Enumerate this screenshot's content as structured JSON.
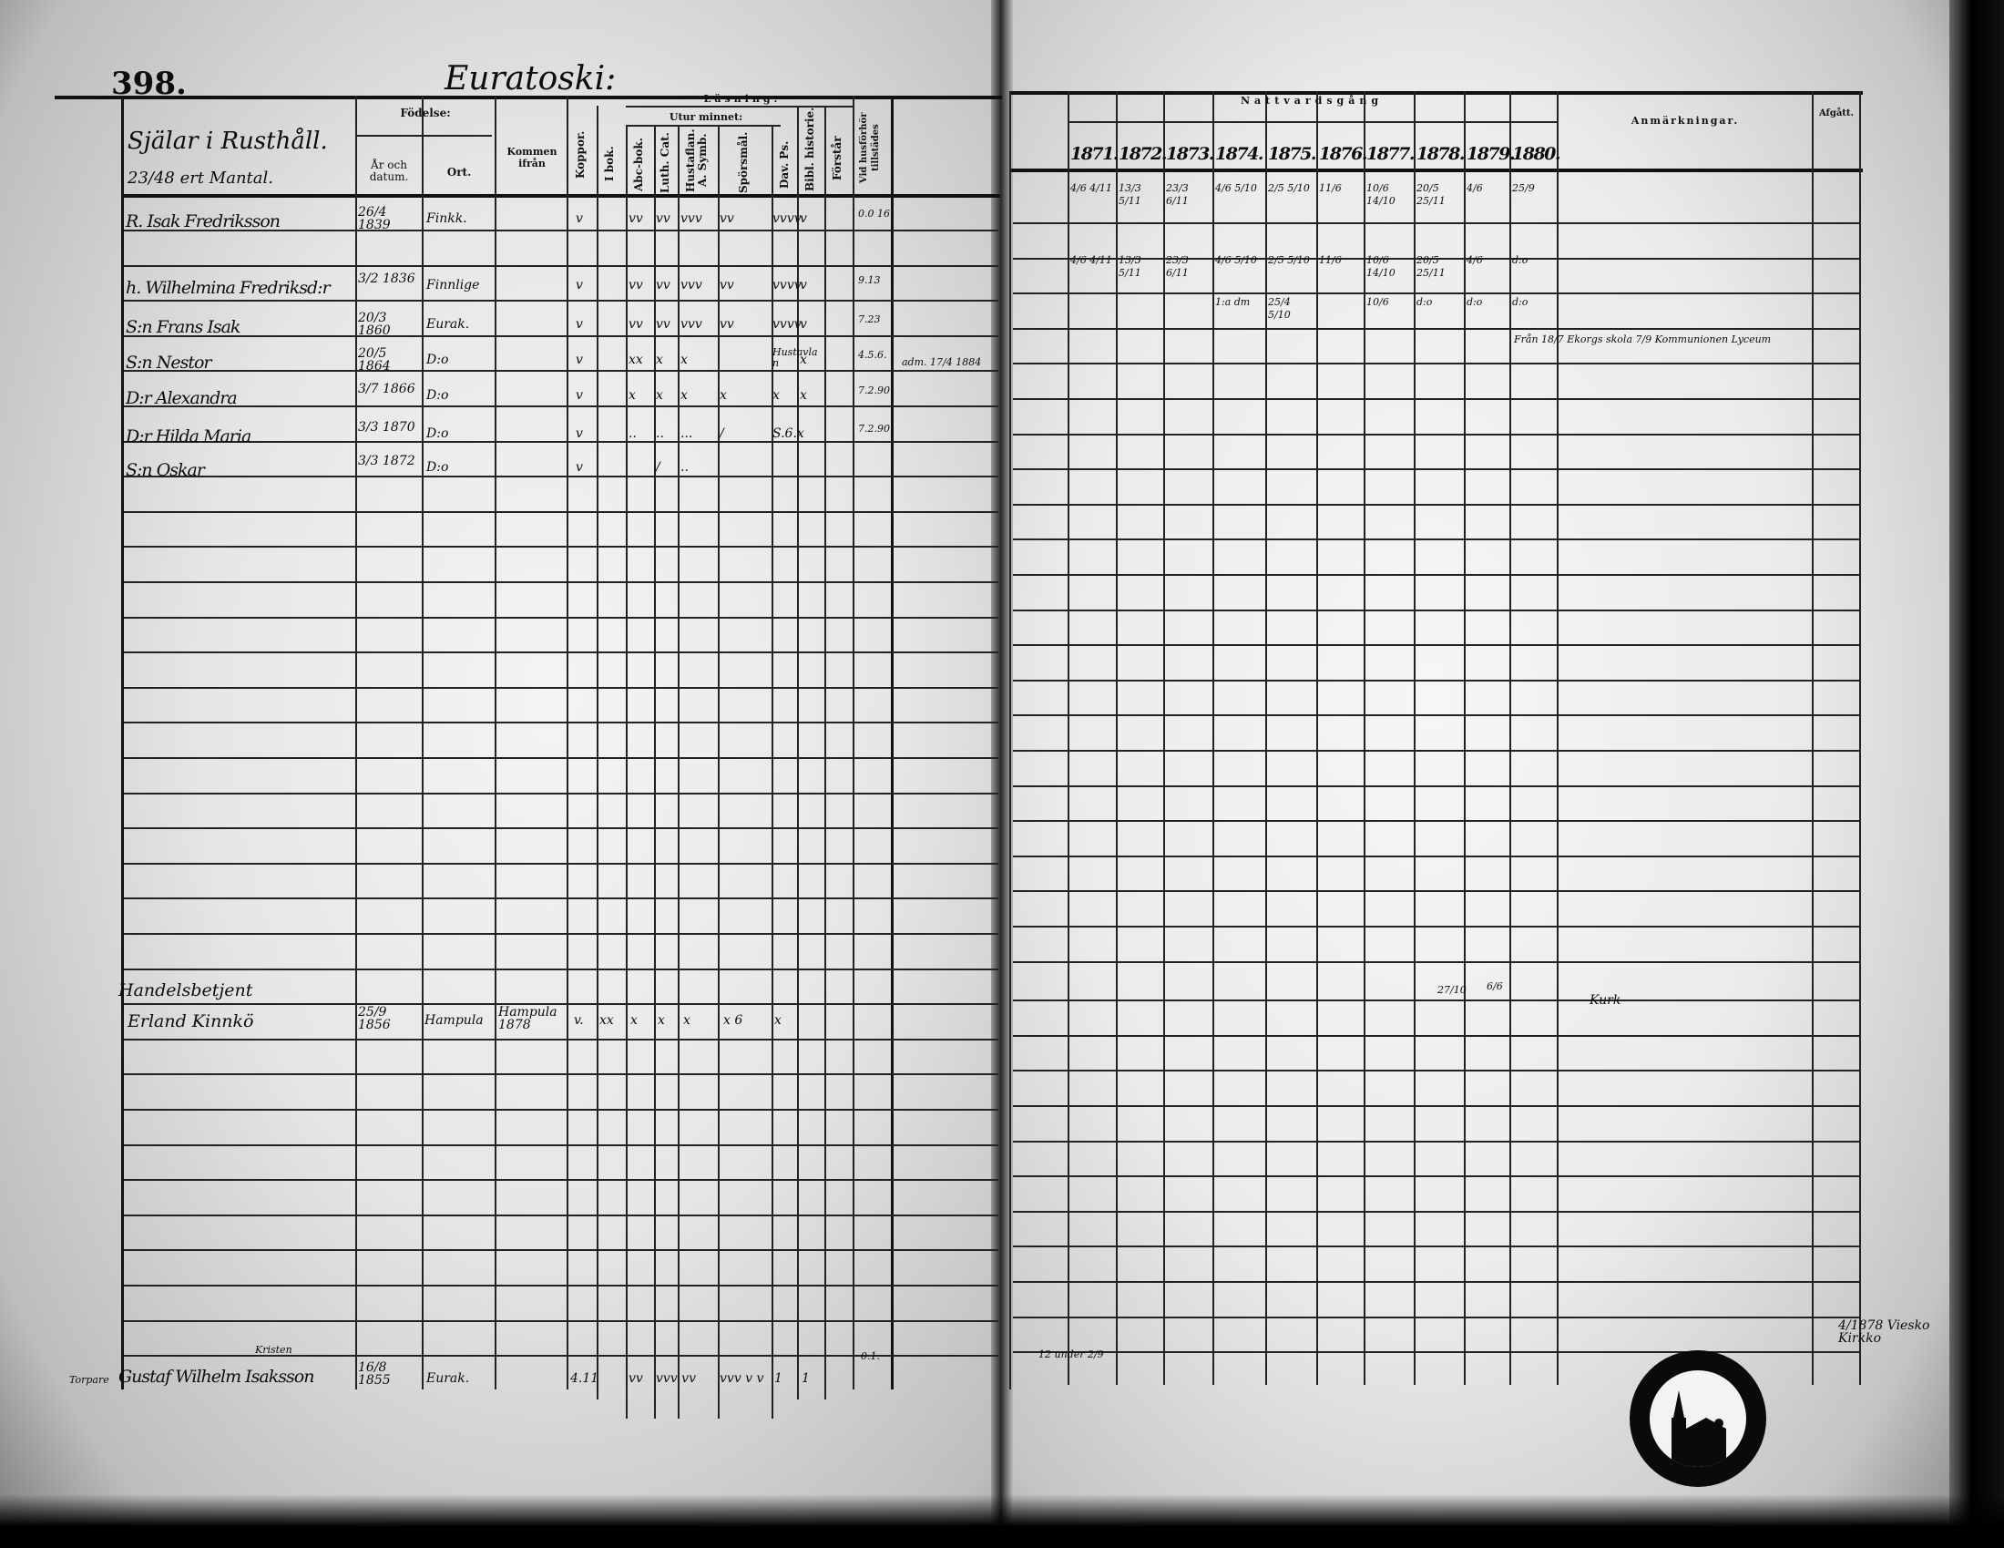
{
  "left_page": {
    "page_number": "398.",
    "village_title": "Euratoski:",
    "headers": {
      "souls": "Själar i Rusthåll.",
      "mantal": "23/48 ert Mantal.",
      "birth": "Födelse:",
      "birth_year": "År och datum.",
      "birth_place": "Ort.",
      "came_from": "Kommen ifrån",
      "smallpox": "Koppor.",
      "reading": "Läsning.",
      "by_heart": "Utur minnet:",
      "in_book": "I bok.",
      "abc_book": "Abc-bok.",
      "luth_cat": "Luth. Cat.",
      "hustaflan": "Hustaflan. A. Symb.",
      "questions": "Spörsmål.",
      "dav_ps": "Dav. Ps.",
      "bibl_hist": "Bibl. historie.",
      "understands": "Förstår",
      "present_at_exam": "Vid husförhör tillstädes"
    },
    "persons": [
      {
        "name": "R. Isak Fredriksson",
        "date": "26/4 1839",
        "place": "Finkk.",
        "smallpox": "v",
        "marks": [
          "vv",
          "vv",
          "vvv",
          "vv",
          "vvvv",
          "v"
        ],
        "present": "0.0 16"
      },
      {
        "name": "h. Wilhelmina Fredriksd:r",
        "date": "3/2 1836",
        "place": "Finnlige",
        "smallpox": "v",
        "marks": [
          "vv",
          "vv",
          "vvv",
          "vv",
          "vvvv",
          "v"
        ],
        "present": "9.13"
      },
      {
        "name": "S:n Frans Isak",
        "date": "20/3 1860",
        "place": "Eurak.",
        "smallpox": "v",
        "marks": [
          "vv",
          "vv",
          "vvv",
          "vv",
          "vvvv",
          "v"
        ],
        "present": "7.23"
      },
      {
        "name": "S:n Nestor",
        "date": "20/5 1864",
        "place": "D:o",
        "smallpox": "v",
        "marks": [
          "xx",
          "x",
          "x",
          "",
          "Hustavlan",
          "x"
        ],
        "present": "4.5.6."
      },
      {
        "name": "D:r Alexandra",
        "date": "3/7 1866",
        "place": "D:o",
        "smallpox": "v",
        "marks": [
          "x",
          "x",
          "x",
          "x",
          "x",
          "x"
        ],
        "present": "7.2.90."
      },
      {
        "name": "D:r Hilda Maria",
        "date": "3/3 1870",
        "place": "D:o",
        "smallpox": "v",
        "marks": [
          "..",
          "..",
          "...",
          "/",
          "S.6.x",
          ""
        ],
        "present": "7.2.90"
      },
      {
        "name": "S:n Oskar",
        "date": "3/3 1872",
        "place": "D:o",
        "smallpox": "v",
        "marks": [
          "",
          "/",
          "..",
          "",
          "",
          ""
        ],
        "present": ""
      }
    ],
    "note_nestor": "adm. 17/4 1884",
    "servant_title": "Handelsbetjent",
    "servant": {
      "name": "Erland Kinnkö",
      "date": "25/9 1856",
      "place": "Hampula",
      "came_from": "Hampula 1878",
      "smallpox": "v.",
      "marks": [
        "xx",
        "x",
        "x",
        "x",
        "x 6",
        "x"
      ]
    },
    "bottom_person": {
      "prefix": "Torpare",
      "name": "Gustaf Wilhelm Isaksson",
      "title": "Kristen",
      "date": "16/8 1855",
      "place": "Eurak.",
      "marks": [
        "4.11",
        "vv",
        "vvv vv",
        "vvv v v",
        "1",
        "1"
      ],
      "present": "0.1."
    }
  },
  "right_page": {
    "communion_title": "Nattvardsgång",
    "years": [
      "1871.",
      "1872.",
      "1873.",
      "1874.",
      "1875.",
      "1876.",
      "1877.",
      "1878.",
      "1879.",
      "1880."
    ],
    "remarks_header": "Anmärkningar.",
    "departed_header": "Afgått.",
    "communion_rows": [
      [
        "4/6 4/11",
        "13/3 5/11",
        "23/3 6/11",
        "4/6 5/10",
        "2/5 5/10",
        "11/6",
        "10/6 14/10",
        "20/5 25/11",
        "4/6",
        "25/9"
      ],
      [
        "4/6 4/11",
        "13/3 5/11",
        "23/3 6/11",
        "4/6 5/10",
        "2/5 5/10",
        "11/6",
        "10/6 14/10",
        "20/5 25/11",
        "4/6",
        "d:o"
      ],
      [
        "",
        "",
        "",
        "1:a dm",
        "25/4 5/10",
        "",
        "10/6",
        "d:o",
        "d:o",
        "d:o"
      ]
    ],
    "remark_frans": "Från 18/7 Ekorgs skola 7/9 Kommunionen Lyceum",
    "servant_communion": [
      "27/10",
      "6/6"
    ],
    "servant_remark": "Kurk",
    "bottom_note": "4/1878 Viesko Kirkko",
    "bottom_note_left": "12 under 2/9"
  },
  "stamp": {
    "text": "Church seal"
  }
}
